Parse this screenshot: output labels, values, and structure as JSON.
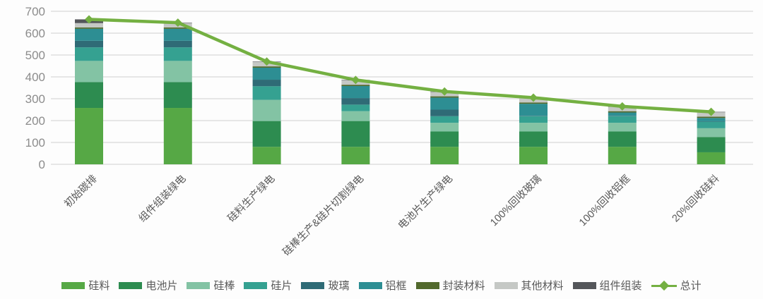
{
  "chart_data": {
    "type": "bar",
    "subtype": "stacked-column-with-total-line",
    "title": "",
    "xlabel": "",
    "ylabel": "",
    "categories": [
      "初始碳排",
      "组件组装绿电",
      "硅料生产绿电",
      "硅棒生产&硅片切割绿电",
      "电池片生产绿电",
      "100%回收玻璃",
      "100%回收铝框",
      "20%回收硅料"
    ],
    "series": [
      {
        "name": "硅料",
        "color": "#56A845",
        "values": [
          258,
          258,
          80,
          80,
          80,
          80,
          80,
          55
        ]
      },
      {
        "name": "电池片",
        "color": "#2D8C50",
        "values": [
          118,
          118,
          118,
          118,
          70,
          70,
          70,
          70
        ]
      },
      {
        "name": "硅棒",
        "color": "#83C3A4",
        "values": [
          97,
          97,
          97,
          45,
          40,
          40,
          40,
          40
        ]
      },
      {
        "name": "硅片",
        "color": "#35A191",
        "values": [
          62,
          62,
          62,
          30,
          30,
          30,
          30,
          30
        ]
      },
      {
        "name": "玻璃",
        "color": "#2F6B76",
        "values": [
          30,
          30,
          30,
          30,
          30,
          2,
          2,
          2
        ]
      },
      {
        "name": "铝框",
        "color": "#2D8E93",
        "values": [
          55,
          55,
          55,
          55,
          55,
          55,
          15,
          15
        ]
      },
      {
        "name": "封装材料",
        "color": "#52692D",
        "values": [
          6,
          6,
          6,
          6,
          6,
          6,
          6,
          6
        ]
      },
      {
        "name": "其他材料",
        "color": "#C5C8C5",
        "values": [
          20,
          20,
          20,
          20,
          20,
          20,
          20,
          20
        ]
      },
      {
        "name": "组件组装",
        "color": "#54565A",
        "values": [
          17,
          2,
          2,
          2,
          2,
          2,
          2,
          2
        ]
      }
    ],
    "line_series": {
      "name": "总计",
      "color": "#74B042",
      "marker": "diamond",
      "values": [
        663,
        648,
        470,
        386,
        333,
        305,
        265,
        240
      ]
    },
    "ylim": [
      0,
      700
    ],
    "yticks": [
      0,
      100,
      200,
      300,
      400,
      500,
      600,
      700
    ],
    "grid": true,
    "legend_position": "bottom",
    "axis_style": {
      "tick_label_color": "#8C8C8C",
      "category_label_color": "#595959",
      "grid_color": "#D9D9D9"
    }
  }
}
